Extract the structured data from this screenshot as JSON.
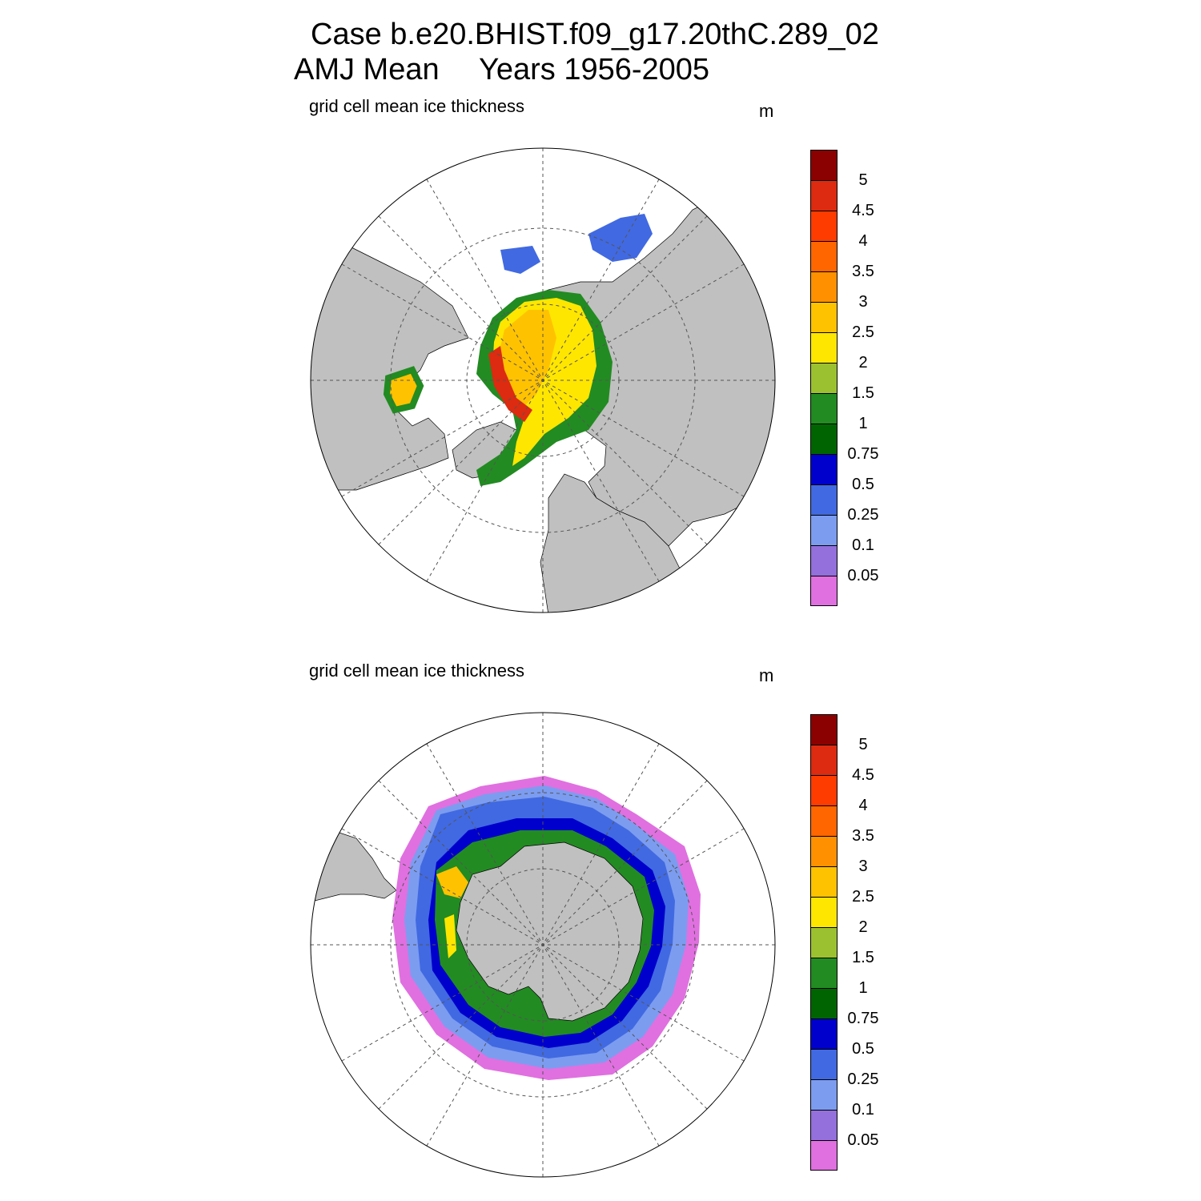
{
  "header": {
    "line1": "Case b.e20.BHIST.f09_g17.20thC.289_02",
    "line2_prefix": "AMJ Mean",
    "line2_years": "Years 1956-2005"
  },
  "panels": [
    {
      "name": "north",
      "label": "grid cell mean ice thickness",
      "units": "m"
    },
    {
      "name": "south",
      "label": "grid cell mean ice thickness",
      "units": "m"
    }
  ],
  "colorbar": {
    "tick_labels": [
      "5",
      "4.5",
      "4",
      "3.5",
      "3",
      "2.5",
      "2",
      "1.5",
      "1",
      "0.75",
      "0.5",
      "0.25",
      "0.1",
      "0.05"
    ],
    "colors": [
      "#8b0000",
      "#dc2b10",
      "#ff3c00",
      "#ff6600",
      "#ff9100",
      "#ffc200",
      "#ffe600",
      "#9cc130",
      "#228b22",
      "#006400",
      "#0000cd",
      "#4169e1",
      "#7c9cf0",
      "#9370db",
      "#e070e0"
    ]
  },
  "colors": {
    "land": "#c0c0c0",
    "ocean": "#ffffff",
    "grid": "#555555"
  }
}
